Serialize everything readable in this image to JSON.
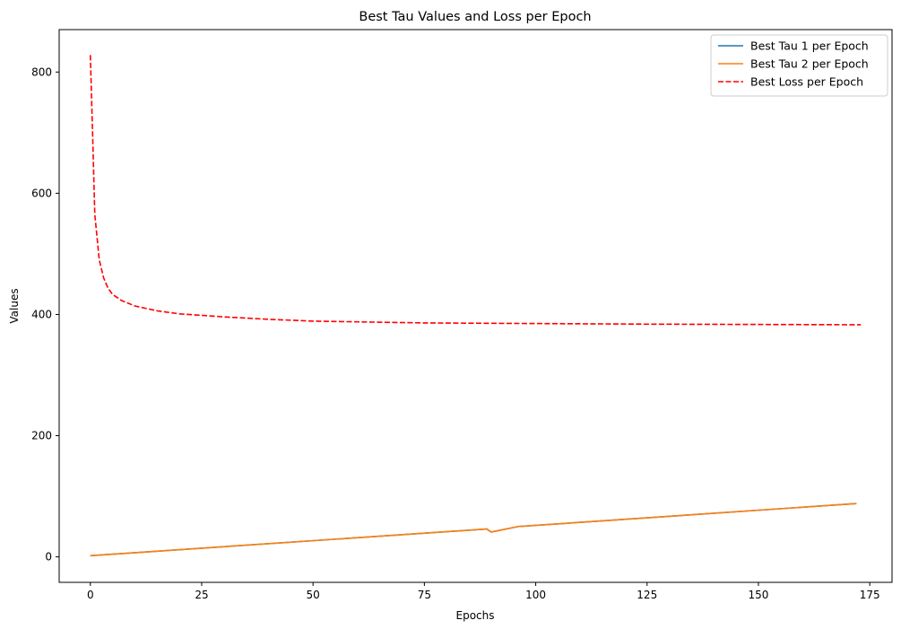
{
  "chart_data": {
    "type": "line",
    "title": "Best Tau Values and Loss per Epoch",
    "xlabel": "Epochs",
    "ylabel": "Values",
    "xlim": [
      -7,
      180
    ],
    "ylim": [
      -42,
      870
    ],
    "xticks": [
      0,
      25,
      50,
      75,
      100,
      125,
      150,
      175
    ],
    "yticks": [
      0,
      200,
      400,
      600,
      800
    ],
    "legend_position": "top-right",
    "grid": false,
    "series": [
      {
        "name": "Best Tau 1 per Epoch",
        "color": "#1f77b4",
        "style": "solid",
        "points": [
          [
            0,
            2
          ],
          [
            89,
            46
          ],
          [
            90,
            41
          ],
          [
            96,
            50
          ],
          [
            172,
            88
          ]
        ]
      },
      {
        "name": "Best Tau 2 per Epoch",
        "color": "#ff7f0e",
        "style": "solid",
        "points": [
          [
            0,
            2
          ],
          [
            89,
            46
          ],
          [
            90,
            41
          ],
          [
            96,
            50
          ],
          [
            172,
            88
          ]
        ]
      },
      {
        "name": "Best Loss per Epoch",
        "color": "#ff0000",
        "style": "dashed",
        "points": [
          [
            0,
            828
          ],
          [
            0.5,
            700
          ],
          [
            1,
            565
          ],
          [
            2,
            490
          ],
          [
            3,
            460
          ],
          [
            4,
            443
          ],
          [
            5,
            433
          ],
          [
            7,
            423
          ],
          [
            10,
            414
          ],
          [
            15,
            406
          ],
          [
            20,
            401
          ],
          [
            30,
            396
          ],
          [
            40,
            392
          ],
          [
            50,
            389
          ],
          [
            75,
            386
          ],
          [
            100,
            385
          ],
          [
            125,
            384
          ],
          [
            150,
            383.5
          ],
          [
            173,
            383
          ]
        ]
      }
    ]
  }
}
